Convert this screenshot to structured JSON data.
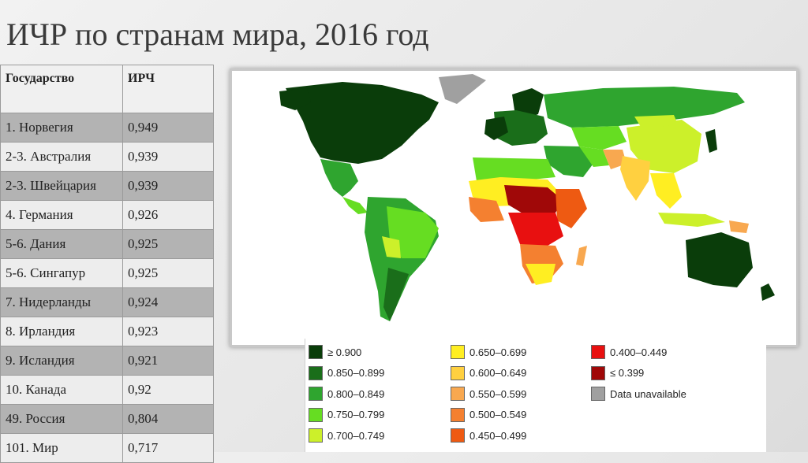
{
  "title": "ИЧР по странам мира, 2016 год",
  "table": {
    "headers": [
      "Государство",
      "ИРЧ"
    ],
    "rows": [
      {
        "country": "1.   Норвегия",
        "value": "0,949"
      },
      {
        "country": "2-3. Австралия",
        "value": "0,939"
      },
      {
        "country": "2-3. Швейцария",
        "value": "0,939"
      },
      {
        "country": "4. Германия",
        "value": "0,926"
      },
      {
        "country": "5-6. Дания",
        "value": "0,925"
      },
      {
        "country": "5-6. Сингапур",
        "value": "0,925"
      },
      {
        "country": "7. Нидерланды",
        "value": "0,924"
      },
      {
        "country": "8. Ирландия",
        "value": "0,923"
      },
      {
        "country": "9. Исландия",
        "value": "0,921"
      },
      {
        "country": "10. Канада",
        "value": "0,92"
      },
      {
        "country": "49. Россия",
        "value": "0,804"
      },
      {
        "country": "101. Мир",
        "value": "0,717"
      }
    ]
  },
  "legend": {
    "items": [
      {
        "label": "≥ 0.900",
        "color": "#0a3d0a"
      },
      {
        "label": "0.850–0.899",
        "color": "#1a6e1a"
      },
      {
        "label": "0.800–0.849",
        "color": "#2fa52f"
      },
      {
        "label": "0.750–0.799",
        "color": "#66dd22"
      },
      {
        "label": "0.700–0.749",
        "color": "#ccf02a"
      },
      {
        "label": "0.650–0.699",
        "color": "#ffee22"
      },
      {
        "label": "0.600–0.649",
        "color": "#ffd040"
      },
      {
        "label": "0.550–0.599",
        "color": "#f8a850"
      },
      {
        "label": "0.500–0.549",
        "color": "#f48030"
      },
      {
        "label": "0.450–0.499",
        "color": "#ee5a12"
      },
      {
        "label": "0.400–0.449",
        "color": "#e81010"
      },
      {
        "label": "≤ 0.399",
        "color": "#a00808"
      },
      {
        "label": "Data unavailable",
        "color": "#a0a0a0"
      }
    ]
  }
}
